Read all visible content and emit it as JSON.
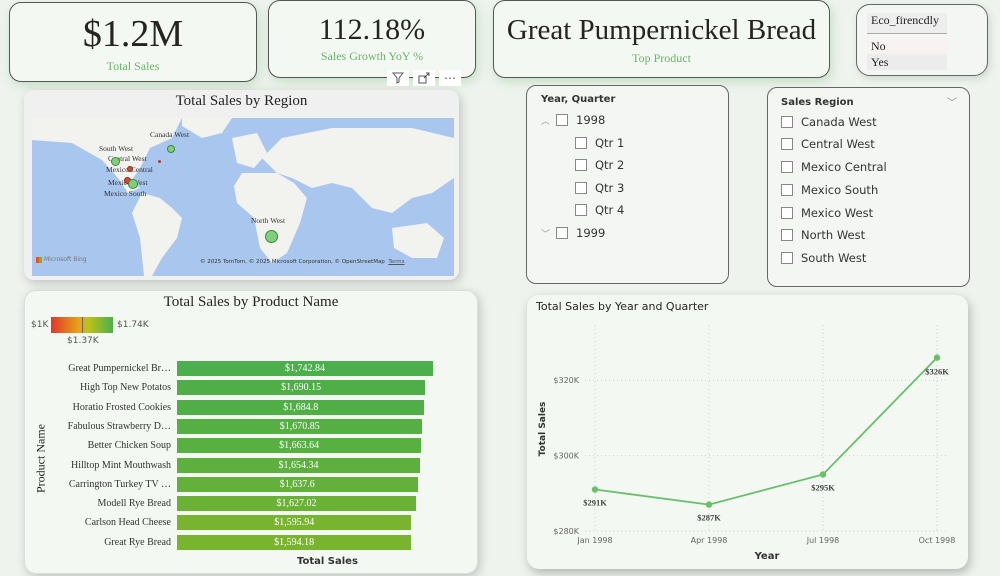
{
  "kpis": {
    "total_sales": {
      "value": "$1.2M",
      "label": "Total Sales"
    },
    "sales_growth": {
      "value": "112.18%",
      "label": "Sales Growth YoY %"
    },
    "top_product": {
      "value": "Great Pumpernickel Bread",
      "label": "Top Product"
    }
  },
  "visual_header": {
    "filter_icon": "filter-icon",
    "focus_icon": "focus-mode-icon",
    "more_icon": "more-options-icon"
  },
  "eco_slicer": {
    "title": "Eco_firencdly",
    "options": [
      "No",
      "Yes"
    ]
  },
  "map": {
    "title": "Total Sales by Region",
    "labels": [
      "Canada West",
      "South West",
      "Central West",
      "Mexico Central",
      "Mexico West",
      "Mexico South",
      "North West"
    ],
    "attribution": "© 2025 TomTom, © 2025 Microsoft Corporation, © OpenStreetMap",
    "terms": "Terms",
    "logo": "Microsoft Bing"
  },
  "year_slicer": {
    "title": "Year, Quarter",
    "items": [
      {
        "label": "1998",
        "expanded": true
      },
      {
        "label": "Qtr 1"
      },
      {
        "label": "Qtr 2"
      },
      {
        "label": "Qtr 3"
      },
      {
        "label": "Qtr 4"
      },
      {
        "label": "1999",
        "expanded": false
      }
    ]
  },
  "region_slicer": {
    "title": "Sales Region",
    "items": [
      "Canada West",
      "Central West",
      "Mexico Central",
      "Mexico South",
      "Mexico West",
      "North West",
      "South West"
    ]
  },
  "bar_chart": {
    "title": "Total Sales by Product Name",
    "legend": {
      "min": "$1K",
      "max": "$1.74K",
      "mid": "$1.37K"
    },
    "ylabel": "Product Name",
    "xlabel": "Total Sales"
  },
  "line_chart": {
    "title": "Total Sales by Year and Quarter",
    "ylabel": "Total Sales",
    "xlabel": "Year"
  },
  "chart_data": [
    {
      "type": "bar",
      "title": "Total Sales by Product Name",
      "xlabel": "Total Sales",
      "ylabel": "Product Name",
      "categories": [
        "Great Pumpernickel Br…",
        "High Top New Potatos",
        "Horatio Frosted Cookies",
        "Fabulous Strawberry D…",
        "Better Chicken Soup",
        "Hilltop Mint Mouthwash",
        "Carrington Turkey TV …",
        "Modell Rye Bread",
        "Carlson Head Cheese",
        "Great Rye Bread"
      ],
      "values": [
        1742.84,
        1690.15,
        1684.8,
        1670.85,
        1663.64,
        1654.34,
        1637.6,
        1627.02,
        1595.94,
        1594.18
      ],
      "value_labels": [
        "$1,742.84",
        "$1,690.15",
        "$1,684.8",
        "$1,670.85",
        "$1,663.64",
        "$1,654.34",
        "$1,637.6",
        "$1,627.02",
        "$1,595.94",
        "$1,594.18"
      ],
      "colors": [
        "#4cae4c",
        "#4fae47",
        "#50ae46",
        "#55af43",
        "#58b041",
        "#5db03e",
        "#63b13a",
        "#6ab136",
        "#78b42e",
        "#79b42e"
      ],
      "legend": {
        "min": "$1K",
        "mid": "$1.37K",
        "max": "$1.74K"
      }
    },
    {
      "type": "line",
      "title": "Total Sales by Year and Quarter",
      "xlabel": "Year",
      "ylabel": "Total Sales",
      "x": [
        "Jan 1998",
        "Apr 1998",
        "Jul 1998",
        "Oct 1998"
      ],
      "values": [
        291000,
        287000,
        295000,
        326000
      ],
      "value_labels": [
        "$291K",
        "$287K",
        "$295K",
        "$326K"
      ],
      "yticks": [
        "$280K",
        "$300K",
        "$320K"
      ],
      "ylim": [
        280000,
        330000
      ],
      "grid": true,
      "color": "#6abf6a"
    }
  ]
}
